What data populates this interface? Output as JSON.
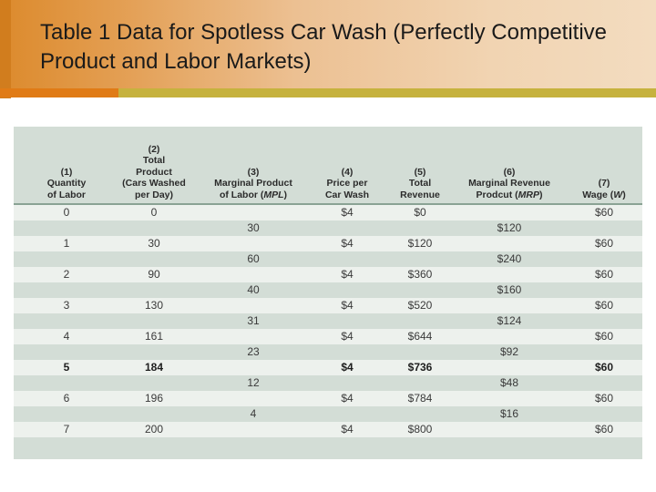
{
  "title": "Table 1 Data for Spotless Car Wash (Perfectly Competitive Product and Labor Markets)",
  "colors": {
    "header_orange": "#dc8a2c",
    "underline_orange": "#e07b16",
    "underline_olive": "#c6b23e",
    "table_bg": "#d3ddd6",
    "row_light": "#edf1ed"
  },
  "table": {
    "headers": [
      {
        "num": "(1)",
        "label": "Quantity of Labor"
      },
      {
        "num": "(2)",
        "label": "Total Product (Cars Washed per Day)"
      },
      {
        "num": "(3)",
        "label": "Marginal Product of Labor (MPL)"
      },
      {
        "num": "(4)",
        "label": "Price per Car Wash"
      },
      {
        "num": "(5)",
        "label": "Total Revenue"
      },
      {
        "num": "(6)",
        "label": "Marginal Revenue Prodcut (MRP)"
      },
      {
        "num": "(7)",
        "label": "Wage (W)"
      }
    ],
    "rows": [
      {
        "labor": "0",
        "tp": "0",
        "price": "$4",
        "tr": "$0",
        "wage": "$60",
        "bold": false
      },
      {
        "labor": "1",
        "tp": "30",
        "price": "$4",
        "tr": "$120",
        "wage": "$60",
        "bold": false
      },
      {
        "labor": "2",
        "tp": "90",
        "price": "$4",
        "tr": "$360",
        "wage": "$60",
        "bold": false
      },
      {
        "labor": "3",
        "tp": "130",
        "price": "$4",
        "tr": "$520",
        "wage": "$60",
        "bold": false
      },
      {
        "labor": "4",
        "tp": "161",
        "price": "$4",
        "tr": "$644",
        "wage": "$60",
        "bold": false
      },
      {
        "labor": "5",
        "tp": "184",
        "price": "$4",
        "tr": "$736",
        "wage": "$60",
        "bold": true
      },
      {
        "labor": "6",
        "tp": "196",
        "price": "$4",
        "tr": "$784",
        "wage": "$60",
        "bold": false
      },
      {
        "labor": "7",
        "tp": "200",
        "price": "$4",
        "tr": "$800",
        "wage": "$60",
        "bold": false
      }
    ],
    "marginal": [
      {
        "mpl": "30",
        "mrp": "$120"
      },
      {
        "mpl": "60",
        "mrp": "$240"
      },
      {
        "mpl": "40",
        "mrp": "$160"
      },
      {
        "mpl": "31",
        "mrp": "$124"
      },
      {
        "mpl": "23",
        "mrp": "$92"
      },
      {
        "mpl": "12",
        "mrp": "$48"
      },
      {
        "mpl": "4",
        "mrp": "$16"
      }
    ]
  }
}
